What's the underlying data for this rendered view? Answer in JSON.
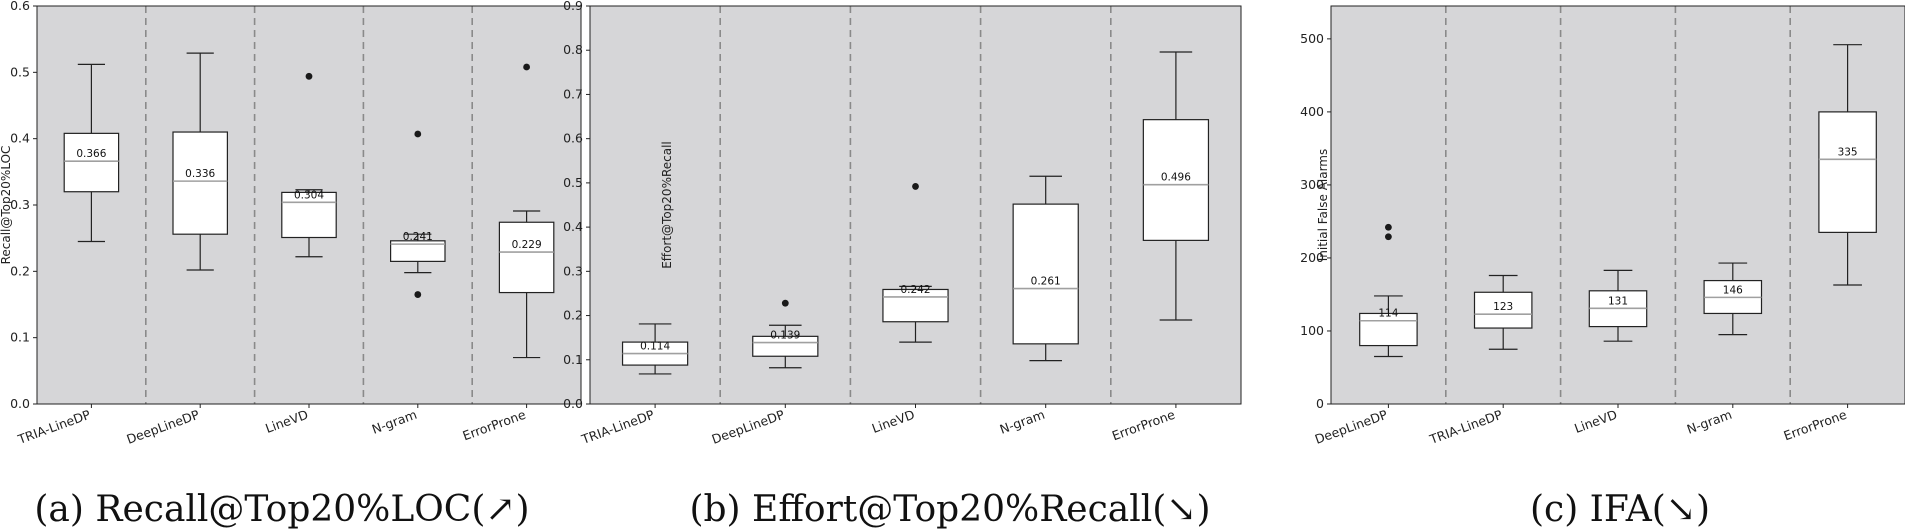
{
  "chart_data": [
    {
      "type": "box",
      "caption": "(a)  Recall@Top20%LOC(↗)",
      "ylabel": "Recall@Top20%LOC",
      "ylim": [
        0.0,
        0.6
      ],
      "yticks": [
        0.0,
        0.1,
        0.2,
        0.3,
        0.4,
        0.5,
        0.6
      ],
      "ytick_labels": [
        "0.0",
        "0.1",
        "0.2",
        "0.3",
        "0.4",
        "0.5",
        "0.6"
      ],
      "grid": false,
      "categories": [
        "TRIA-LineDP",
        "DeepLineDP",
        "LineVD",
        "N-gram",
        "ErrorProne"
      ],
      "boxes": [
        {
          "whisker_low": 0.245,
          "q1": 0.32,
          "median": 0.366,
          "q3": 0.408,
          "whisker_high": 0.512,
          "outliers": [],
          "median_label": "0.366"
        },
        {
          "whisker_low": 0.202,
          "q1": 0.256,
          "median": 0.336,
          "q3": 0.41,
          "whisker_high": 0.529,
          "outliers": [],
          "median_label": "0.336"
        },
        {
          "whisker_low": 0.222,
          "q1": 0.251,
          "median": 0.304,
          "q3": 0.319,
          "whisker_high": 0.323,
          "outliers": [
            0.494
          ],
          "median_label": "0.304"
        },
        {
          "whisker_low": 0.198,
          "q1": 0.215,
          "median": 0.241,
          "q3": 0.246,
          "whisker_high": 0.256,
          "outliers": [
            0.407,
            0.165
          ],
          "median_label": "0.241"
        },
        {
          "whisker_low": 0.07,
          "q1": 0.168,
          "median": 0.229,
          "q3": 0.274,
          "whisker_high": 0.291,
          "outliers": [
            0.508
          ],
          "median_label": "0.229"
        }
      ]
    },
    {
      "type": "box",
      "caption": "(b)  Effort@Top20%Recall(↘)",
      "ylabel": "Effort@Top20%Recall",
      "ylim": [
        0.0,
        0.9
      ],
      "yticks": [
        0.0,
        0.1,
        0.2,
        0.3,
        0.4,
        0.5,
        0.6,
        0.7,
        0.8,
        0.9
      ],
      "ytick_labels": [
        "0.0",
        "0.1",
        "0.2",
        "0.3",
        "0.4",
        "0.5",
        "0.6",
        "0.7",
        "0.8",
        "0.9"
      ],
      "grid": false,
      "categories": [
        "TRIA-LineDP",
        "DeepLineDP",
        "LineVD",
        "N-gram",
        "ErrorProne"
      ],
      "boxes": [
        {
          "whisker_low": 0.068,
          "q1": 0.088,
          "median": 0.114,
          "q3": 0.14,
          "whisker_high": 0.181,
          "outliers": [],
          "median_label": "0.114"
        },
        {
          "whisker_low": 0.082,
          "q1": 0.108,
          "median": 0.139,
          "q3": 0.153,
          "whisker_high": 0.178,
          "outliers": [
            0.228
          ],
          "median_label": "0.139"
        },
        {
          "whisker_low": 0.14,
          "q1": 0.186,
          "median": 0.242,
          "q3": 0.259,
          "whisker_high": 0.266,
          "outliers": [
            0.492
          ],
          "median_label": "0.242"
        },
        {
          "whisker_low": 0.098,
          "q1": 0.136,
          "median": 0.261,
          "q3": 0.452,
          "whisker_high": 0.515,
          "outliers": [],
          "median_label": "0.261"
        },
        {
          "whisker_low": 0.19,
          "q1": 0.37,
          "median": 0.496,
          "q3": 0.643,
          "whisker_high": 0.796,
          "outliers": [],
          "median_label": "0.496"
        }
      ]
    },
    {
      "type": "box",
      "caption": "(c)  IFA(↘)",
      "ylabel": "Initial False Alarms",
      "ylim": [
        0,
        545
      ],
      "yticks": [
        0,
        100,
        200,
        300,
        400,
        500
      ],
      "ytick_labels": [
        "0",
        "100",
        "200",
        "300",
        "400",
        "500"
      ],
      "grid": false,
      "categories": [
        "DeepLineDP",
        "TRIA-LineDP",
        "LineVD",
        "N-gram",
        "ErrorProne"
      ],
      "boxes": [
        {
          "whisker_low": 65,
          "q1": 80,
          "median": 114,
          "q3": 124,
          "whisker_high": 148,
          "outliers": [
            242,
            229
          ],
          "median_label": "114"
        },
        {
          "whisker_low": 75,
          "q1": 104,
          "median": 123,
          "q3": 153,
          "whisker_high": 176,
          "outliers": [],
          "median_label": "123"
        },
        {
          "whisker_low": 86,
          "q1": 106,
          "median": 131,
          "q3": 155,
          "whisker_high": 183,
          "outliers": [],
          "median_label": "131"
        },
        {
          "whisker_low": 95,
          "q1": 124,
          "median": 146,
          "q3": 169,
          "whisker_high": 193,
          "outliers": [],
          "median_label": "146"
        },
        {
          "whisker_low": 163,
          "q1": 235,
          "median": 335,
          "q3": 400,
          "whisker_high": 492,
          "outliers": [],
          "median_label": "335"
        }
      ]
    }
  ],
  "colors": {
    "panel_bg": "#d6d6d8",
    "box_fill": "#ffffff",
    "box_edge": "#222222",
    "median_line": "#a0a0a0",
    "separator": "#8a8a8a",
    "outlier": "#1a1a1a"
  }
}
